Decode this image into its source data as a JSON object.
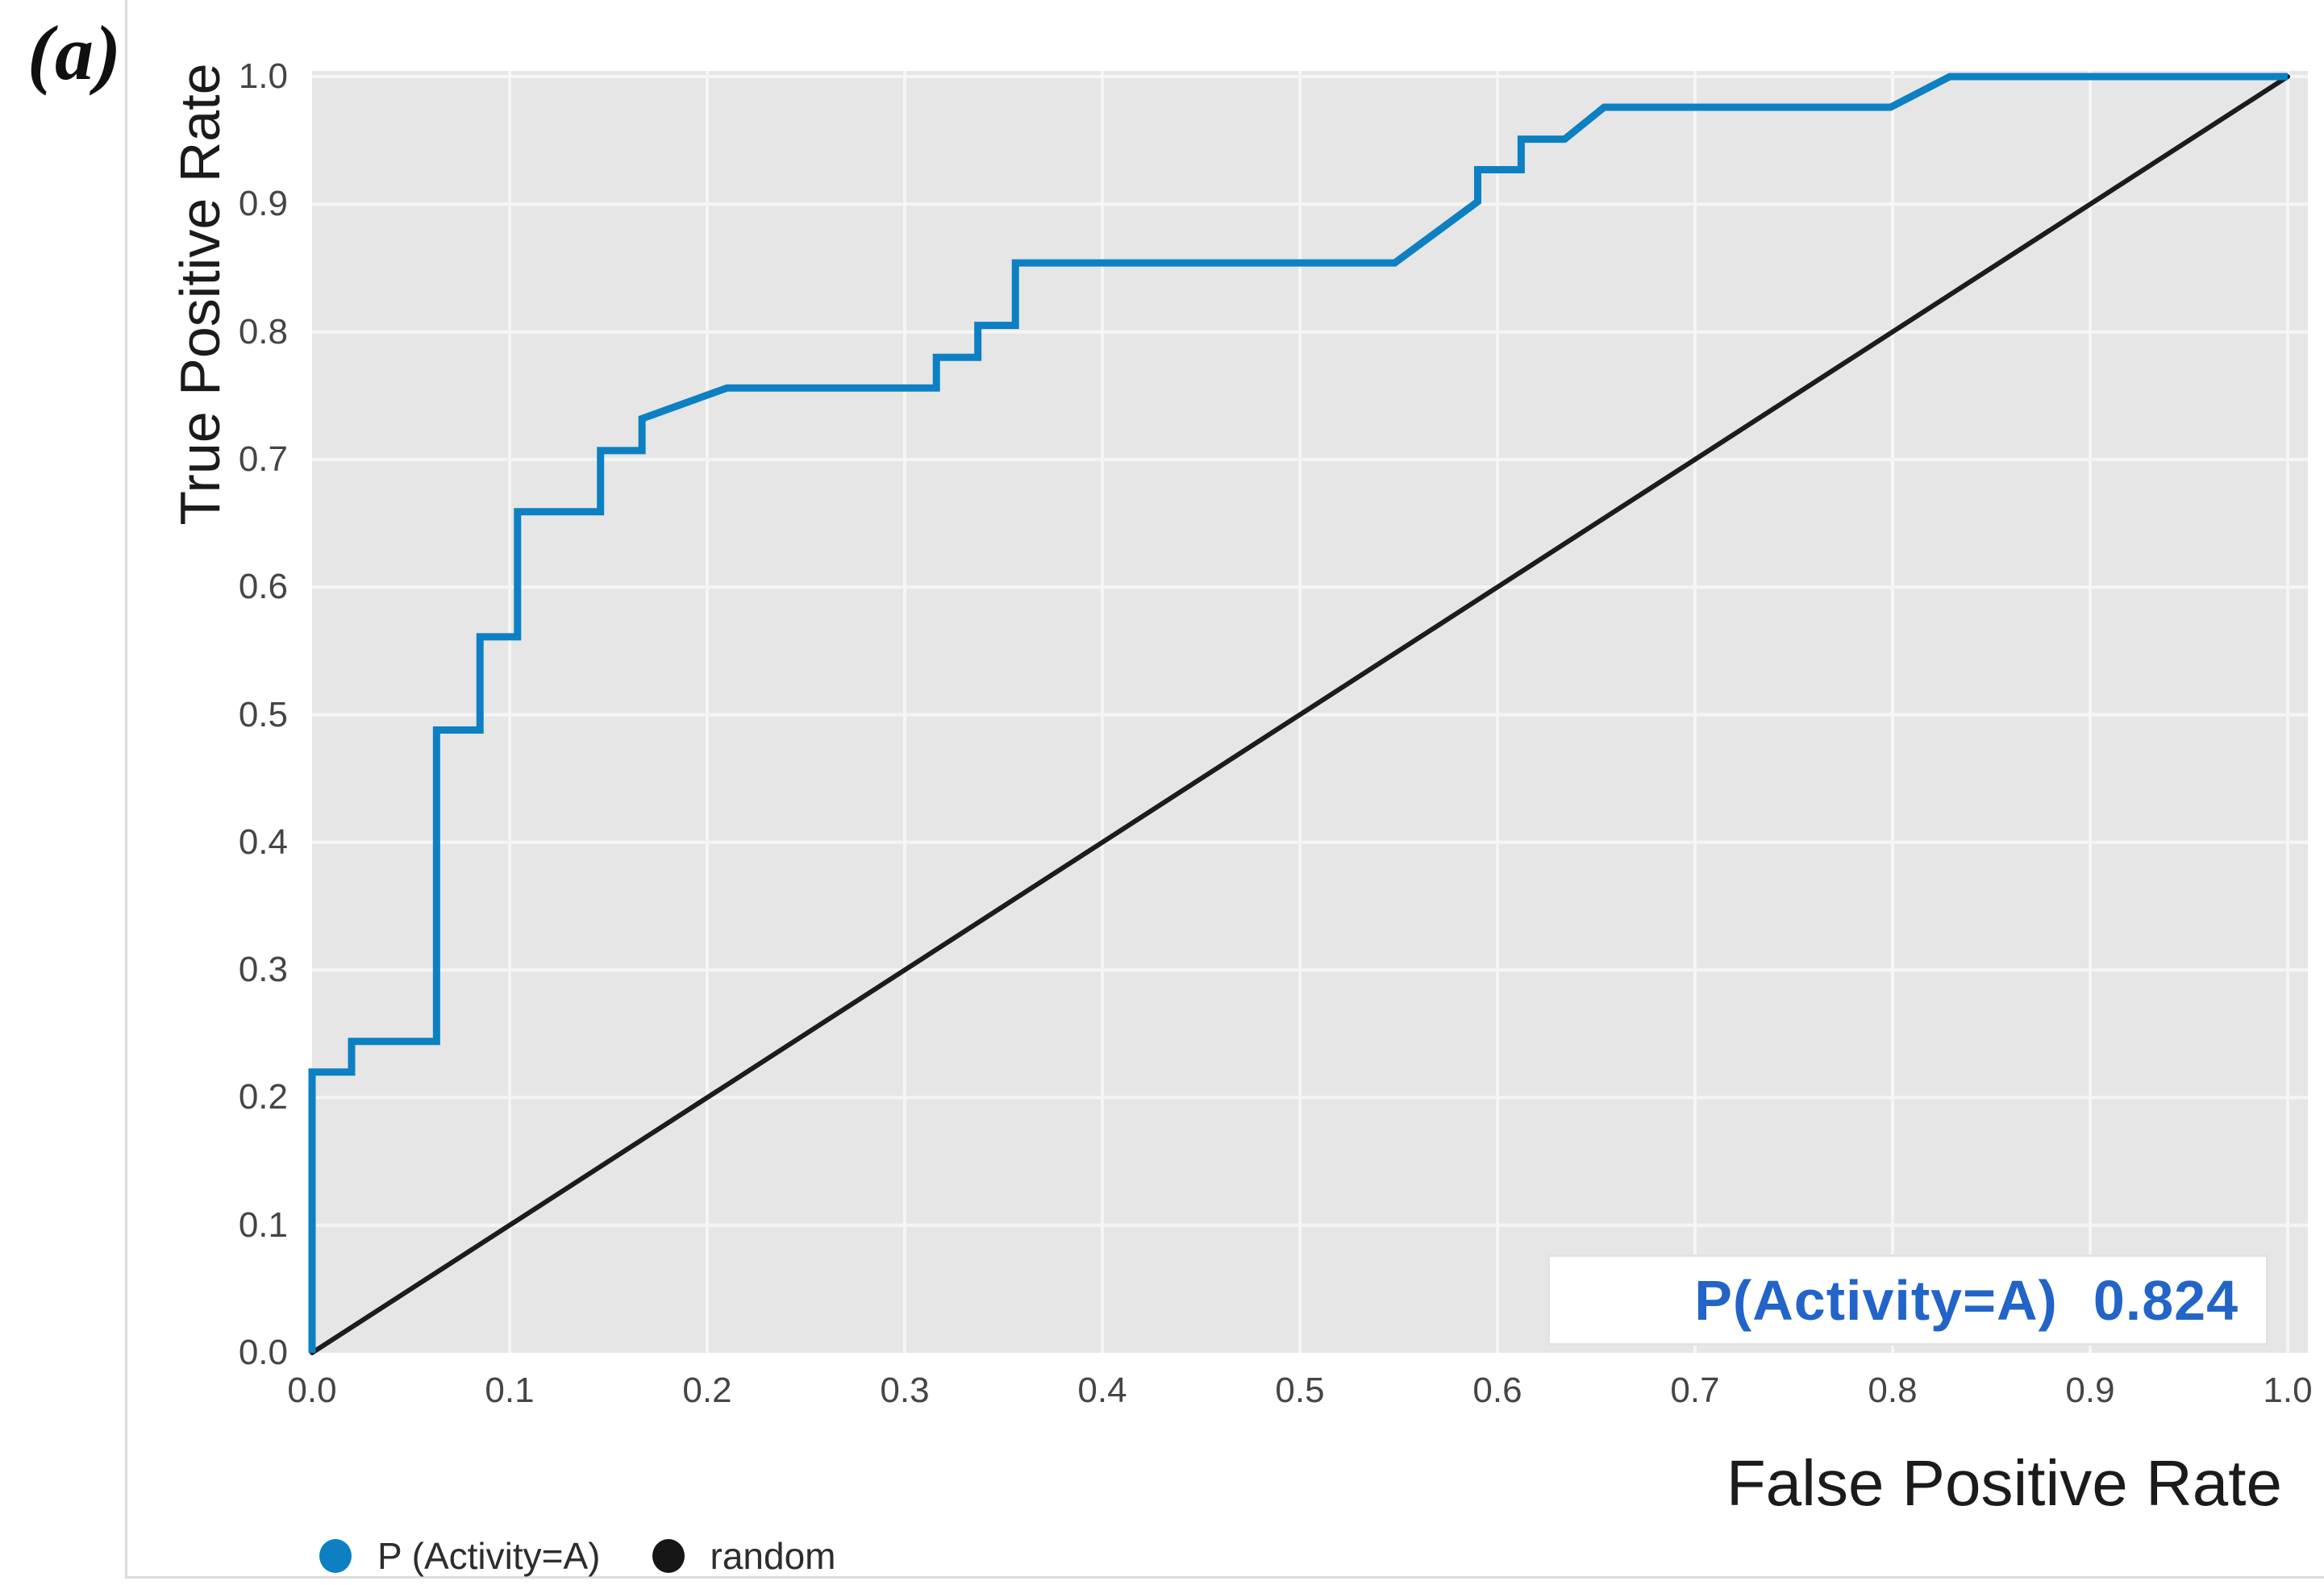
{
  "figure": {
    "panel_label": "(a)"
  },
  "axes": {
    "x": {
      "label": "False Positive Rate",
      "ticks": [
        "0.0",
        "0.1",
        "0.2",
        "0.3",
        "0.4",
        "0.5",
        "0.6",
        "0.7",
        "0.8",
        "0.9",
        "1.0"
      ]
    },
    "y": {
      "label": "True Positive Rate",
      "ticks": [
        "0.0",
        "0.1",
        "0.2",
        "0.3",
        "0.4",
        "0.5",
        "0.6",
        "0.7",
        "0.8",
        "0.9",
        "1.0"
      ]
    }
  },
  "annotation": {
    "label": "P(Activity=A)",
    "value": "0.824"
  },
  "legend": [
    {
      "label": "P (Activity=A)",
      "color": "#0c80c2"
    },
    {
      "label": "random",
      "color": "#161616"
    }
  ],
  "colors": {
    "plot_background": "#e6e6e6",
    "gridline": "#f5f5f5",
    "roc_blue": "#0c80c2",
    "random_black": "#1c1c1c",
    "annotation_blue": "#2264c7",
    "annotation_box_border": "#e2e2e2",
    "tick_text": "#454545",
    "figure_border": "#dcdcdc"
  },
  "chart_data": {
    "type": "line",
    "title": "",
    "xlabel": "False Positive Rate",
    "ylabel": "True Positive Rate",
    "xlim": [
      0,
      1
    ],
    "ylim": [
      0,
      1
    ],
    "grid": true,
    "legend_position": "bottom-left",
    "annotation": {
      "text": "P(Activity=A) 0.824",
      "location": "lower-right"
    },
    "series": [
      {
        "name": "P (Activity=A)",
        "color": "#0c80c2",
        "auc": 0.824,
        "points": [
          [
            0.0,
            0.0
          ],
          [
            0.0,
            0.22
          ],
          [
            0.02,
            0.22
          ],
          [
            0.02,
            0.244
          ],
          [
            0.063,
            0.244
          ],
          [
            0.063,
            0.488
          ],
          [
            0.085,
            0.488
          ],
          [
            0.085,
            0.561
          ],
          [
            0.104,
            0.561
          ],
          [
            0.104,
            0.659
          ],
          [
            0.146,
            0.659
          ],
          [
            0.146,
            0.707
          ],
          [
            0.167,
            0.707
          ],
          [
            0.167,
            0.732
          ],
          [
            0.21,
            0.756
          ],
          [
            0.316,
            0.756
          ],
          [
            0.316,
            0.78
          ],
          [
            0.337,
            0.78
          ],
          [
            0.337,
            0.805
          ],
          [
            0.356,
            0.805
          ],
          [
            0.356,
            0.854
          ],
          [
            0.548,
            0.854
          ],
          [
            0.59,
            0.902
          ],
          [
            0.59,
            0.927
          ],
          [
            0.612,
            0.927
          ],
          [
            0.612,
            0.951
          ],
          [
            0.634,
            0.951
          ],
          [
            0.654,
            0.976
          ],
          [
            0.799,
            0.976
          ],
          [
            0.829,
            1.0
          ],
          [
            1.0,
            1.0
          ]
        ]
      },
      {
        "name": "random",
        "color": "#1c1c1c",
        "points": [
          [
            0.0,
            0.0
          ],
          [
            1.0,
            1.0
          ]
        ]
      }
    ]
  }
}
